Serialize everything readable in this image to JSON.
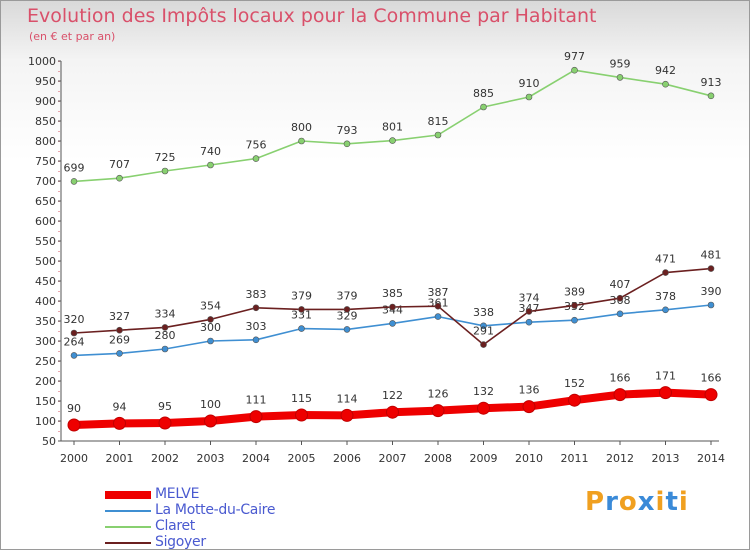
{
  "title": "Evolution des Impôts locaux pour la Commune par Habitant",
  "subtitle": "(en € et par an)",
  "logo": [
    "P",
    "r",
    "o",
    "x",
    "i",
    "t",
    "i"
  ],
  "logo_colors": [
    "#f0a020",
    "#3a8ad8",
    "#f0a020",
    "#3a8ad8",
    "#f0a020",
    "#3a8ad8",
    "#f0a020"
  ],
  "chart_data": {
    "type": "line",
    "x": [
      "2000",
      "2001",
      "2002",
      "2003",
      "2004",
      "2005",
      "2006",
      "2007",
      "2008",
      "2009",
      "2010",
      "2011",
      "2012",
      "2013",
      "2014"
    ],
    "ylim": [
      50,
      1000
    ],
    "yticks": [
      50,
      100,
      150,
      200,
      250,
      300,
      350,
      400,
      450,
      500,
      550,
      600,
      650,
      700,
      750,
      800,
      850,
      900,
      950,
      1000
    ],
    "grid": false,
    "legend_position": "bottom-left",
    "series": [
      {
        "name": "MELVE",
        "color": "#ee0000",
        "values": [
          90,
          94,
          95,
          100,
          111,
          115,
          114,
          122,
          126,
          132,
          136,
          152,
          166,
          171,
          166
        ],
        "labels": [
          "90",
          "94",
          "95",
          "100",
          "111",
          "115",
          "114",
          "122",
          "126",
          "132",
          "136",
          "152",
          "166",
          "171",
          "166"
        ]
      },
      {
        "name": "La Motte-du-Caire",
        "color": "#3f8fd2",
        "values": [
          264,
          269,
          280,
          300,
          303,
          331,
          329,
          344,
          361,
          338,
          347,
          352,
          368,
          378,
          390
        ],
        "labels": [
          "264",
          "269",
          "280",
          "300",
          "303",
          "331",
          "329",
          "344",
          "361",
          "338",
          "347",
          "352",
          "368",
          "378",
          "390"
        ]
      },
      {
        "name": "Claret",
        "color": "#88d070",
        "values": [
          699,
          707,
          725,
          740,
          756,
          800,
          793,
          801,
          815,
          885,
          910,
          977,
          959,
          942,
          913
        ],
        "labels": [
          "699",
          "707",
          "725",
          "740",
          "756",
          "800",
          "793",
          "801",
          "815",
          "885",
          "910",
          "977",
          "959",
          "942",
          "913"
        ]
      },
      {
        "name": "Sigoyer",
        "color": "#6b2020",
        "values": [
          320,
          327,
          334,
          354,
          383,
          379,
          379,
          385,
          387,
          291,
          374,
          389,
          407,
          471,
          481
        ],
        "labels": [
          "320",
          "327",
          "334",
          "354",
          "383",
          "379",
          "379",
          "385",
          "387",
          "291",
          "374",
          "389",
          "407",
          "471",
          "481"
        ]
      }
    ]
  }
}
